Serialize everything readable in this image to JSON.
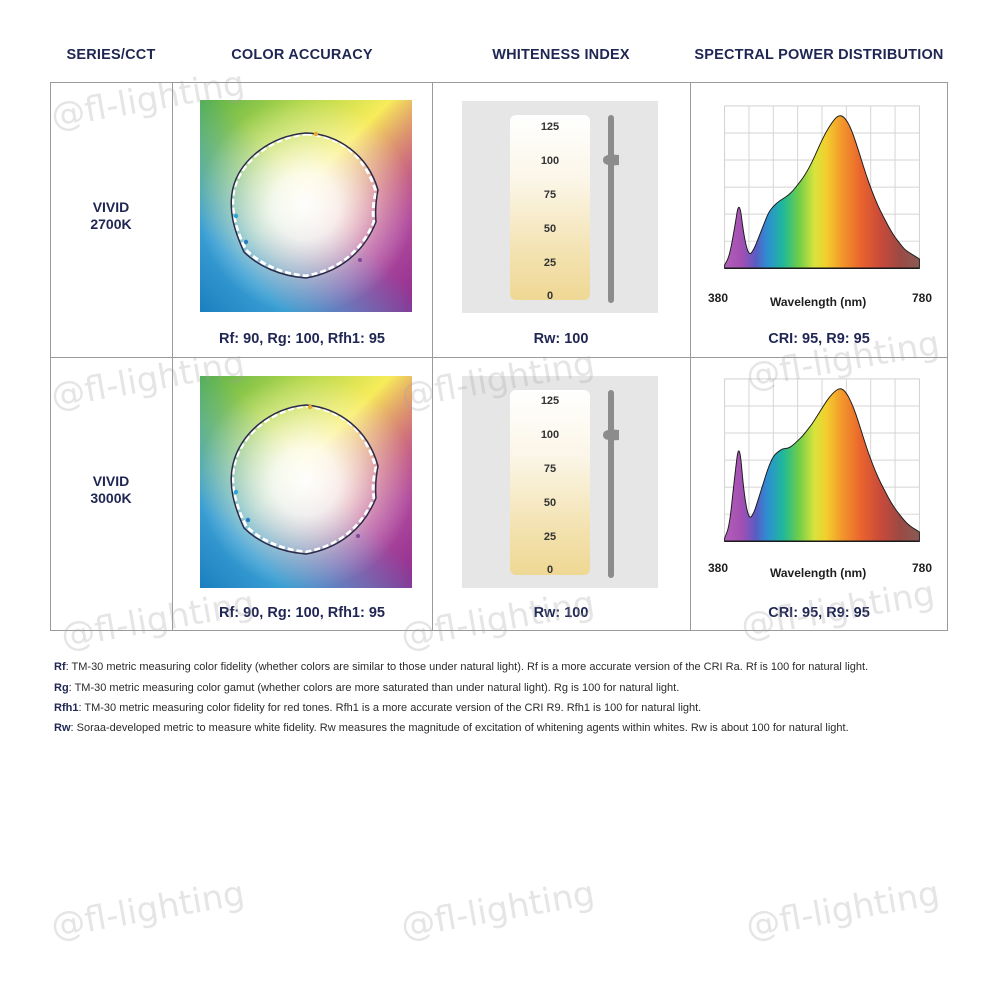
{
  "headers": {
    "series": "SERIES/CCT",
    "color_accuracy": "COLOR ACCURACY",
    "whiteness_index": "WHITENESS INDEX",
    "spd": "SPECTRAL POWER DISTRIBUTION"
  },
  "rows": [
    {
      "series_line1": "VIVID",
      "series_line2": "2700K",
      "color_caption": "Rf: 90, Rg: 100, Rfh1: 95",
      "whiteness_caption": "Rw: 100",
      "spd_caption": "CRI: 95, R9: 95"
    },
    {
      "series_line1": "VIVID",
      "series_line2": "3000K",
      "color_caption": "Rf: 90, Rg: 100, Rfh1: 95",
      "whiteness_caption": "Rw: 100",
      "spd_caption": "CRI: 95, R9: 95"
    }
  ],
  "chart_data": [
    {
      "type": "line",
      "title": "",
      "series": [
        {
          "values": [
            100
          ]
        }
      ],
      "ylim": [
        0,
        125
      ],
      "ticks": [
        "125",
        "100",
        "75",
        "50",
        "25",
        "0"
      ],
      "marker_value": 100
    },
    {
      "type": "line",
      "title": "",
      "series": [
        {
          "values": [
            100
          ]
        }
      ],
      "ylim": [
        0,
        125
      ],
      "ticks": [
        "125",
        "100",
        "75",
        "50",
        "25",
        "0"
      ],
      "marker_value": 100
    },
    {
      "type": "area",
      "title": "",
      "xlabel": "Wavelength (nm)",
      "xlim": [
        380,
        780
      ],
      "xtick_labels": [
        "380",
        "780"
      ],
      "x": [
        380,
        390,
        400,
        410,
        420,
        430,
        440,
        450,
        460,
        470,
        480,
        490,
        500,
        510,
        520,
        530,
        540,
        550,
        560,
        570,
        580,
        590,
        600,
        610,
        620,
        630,
        640,
        650,
        660,
        670,
        680,
        690,
        700,
        710,
        720,
        730,
        740,
        750,
        760,
        770,
        780
      ],
      "series": [
        {
          "values": [
            2,
            8,
            25,
            45,
            20,
            8,
            12,
            20,
            28,
            36,
            40,
            43,
            45,
            47,
            50,
            54,
            58,
            63,
            69,
            76,
            83,
            89,
            94,
            98,
            99,
            96,
            90,
            81,
            71,
            61,
            52,
            44,
            37,
            31,
            25,
            20,
            16,
            12,
            10,
            8,
            6
          ]
        }
      ]
    },
    {
      "type": "area",
      "title": "",
      "xlabel": "Wavelength (nm)",
      "xlim": [
        380,
        780
      ],
      "xtick_labels": [
        "380",
        "780"
      ],
      "x": [
        380,
        390,
        400,
        410,
        420,
        430,
        440,
        450,
        460,
        470,
        480,
        490,
        500,
        510,
        520,
        530,
        540,
        550,
        560,
        570,
        580,
        590,
        600,
        610,
        620,
        630,
        640,
        650,
        660,
        670,
        680,
        690,
        700,
        710,
        720,
        730,
        740,
        750,
        760,
        770,
        780
      ],
      "series": [
        {
          "values": [
            2,
            10,
            40,
            66,
            30,
            14,
            18,
            28,
            38,
            48,
            55,
            58,
            60,
            60,
            62,
            65,
            68,
            72,
            76,
            81,
            86,
            91,
            95,
            98,
            99,
            96,
            90,
            82,
            72,
            62,
            53,
            45,
            38,
            32,
            26,
            21,
            17,
            13,
            10,
            8,
            6
          ]
        }
      ]
    }
  ],
  "legend": [
    {
      "term": "Rf",
      "text": ": TM-30 metric measuring color fidelity (whether colors are similar to those under natural light). Rf is a more accurate version of the CRI Ra. Rf is 100 for natural light."
    },
    {
      "term": "Rg",
      "text": ": TM-30 metric measuring color gamut (whether colors are more saturated than under natural light). Rg is 100 for natural light."
    },
    {
      "term": "Rfh1",
      "text": ": TM-30 metric measuring color fidelity for red tones. Rfh1 is a more accurate version of the CRI R9. Rfh1 is 100 for natural light."
    },
    {
      "term": "Rw",
      "text": ": Soraa-developed metric to measure white fidelity. Rw measures the magnitude of excitation of whitening agents within whites. Rw is about 100 for natural light."
    }
  ],
  "watermark": "@fl-lighting"
}
